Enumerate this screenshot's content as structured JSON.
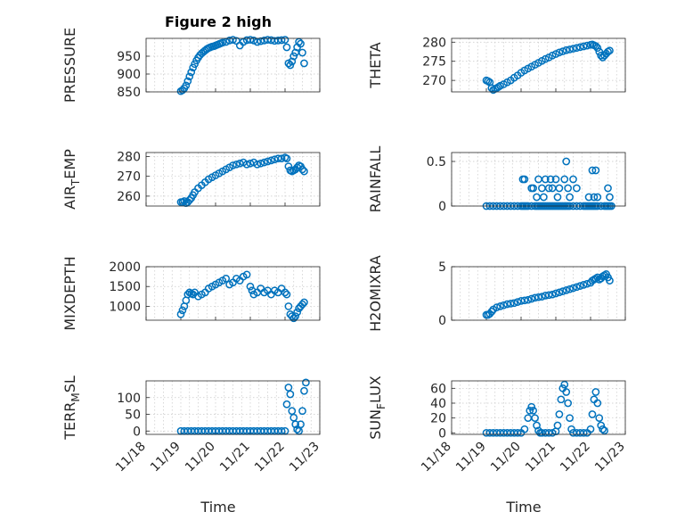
{
  "figure_title": "Figure 2 high",
  "marker_color": "#0072BD",
  "x_tick_labels": [
    "11/18",
    "11/19",
    "11/20",
    "11/21",
    "11/22",
    "11/23"
  ],
  "x_axis_label": "Time",
  "chart_data": [
    {
      "type": "scatter",
      "id": "pressure",
      "ylabel": "PRESSURE",
      "xlim": [
        18,
        23
      ],
      "ylim": [
        850,
        1000
      ],
      "yticks": [
        850,
        900,
        950
      ],
      "grid": true,
      "x": [
        19.0,
        19.05,
        19.1,
        19.15,
        19.2,
        19.25,
        19.3,
        19.35,
        19.4,
        19.45,
        19.5,
        19.55,
        19.6,
        19.65,
        19.7,
        19.75,
        19.8,
        19.85,
        19.9,
        19.95,
        20.0,
        20.05,
        20.1,
        20.15,
        20.2,
        20.3,
        20.4,
        20.5,
        20.6,
        20.7,
        20.8,
        20.9,
        21.0,
        21.1,
        21.2,
        21.3,
        21.4,
        21.5,
        21.6,
        21.7,
        21.8,
        21.9,
        22.0,
        22.05,
        22.1,
        22.15,
        22.2,
        22.25,
        22.3,
        22.35,
        22.4,
        22.45,
        22.5,
        22.55
      ],
      "y": [
        852,
        855,
        860,
        868,
        880,
        893,
        905,
        918,
        928,
        938,
        946,
        953,
        958,
        962,
        966,
        970,
        973,
        975,
        977,
        978,
        980,
        982,
        984,
        986,
        988,
        990,
        994,
        996,
        993,
        980,
        990,
        995,
        996,
        994,
        990,
        992,
        994,
        996,
        995,
        993,
        994,
        995,
        996,
        975,
        930,
        925,
        935,
        950,
        960,
        975,
        990,
        985,
        960,
        930
      ]
    },
    {
      "type": "scatter",
      "id": "theta",
      "ylabel": "THETA",
      "xlim": [
        18,
        23
      ],
      "ylim": [
        267,
        281
      ],
      "yticks": [
        270,
        275,
        280
      ],
      "grid": true,
      "x": [
        19.0,
        19.05,
        19.1,
        19.15,
        19.2,
        19.25,
        19.3,
        19.35,
        19.4,
        19.5,
        19.6,
        19.7,
        19.8,
        19.9,
        20.0,
        20.1,
        20.2,
        20.3,
        20.4,
        20.5,
        20.6,
        20.7,
        20.8,
        20.9,
        21.0,
        21.1,
        21.2,
        21.3,
        21.4,
        21.5,
        21.6,
        21.7,
        21.8,
        21.9,
        22.0,
        22.05,
        22.1,
        22.15,
        22.2,
        22.25,
        22.3,
        22.35,
        22.4,
        22.45,
        22.5,
        22.55
      ],
      "y": [
        270.0,
        269.8,
        269.5,
        268.0,
        267.5,
        267.8,
        268.0,
        268.3,
        268.6,
        269.0,
        269.5,
        270.0,
        270.7,
        271.3,
        272.0,
        272.6,
        273.1,
        273.6,
        274.1,
        274.6,
        275.1,
        275.6,
        276.0,
        276.5,
        276.9,
        277.3,
        277.6,
        277.9,
        278.1,
        278.3,
        278.5,
        278.7,
        278.9,
        279.1,
        279.3,
        279.4,
        279.2,
        279.0,
        278.5,
        277.5,
        276.5,
        276.0,
        276.5,
        277.0,
        277.5,
        277.8
      ]
    },
    {
      "type": "scatter",
      "id": "air_temp",
      "ylabel": "AIR_TEMP",
      "xlim": [
        18,
        23
      ],
      "ylim": [
        255,
        282
      ],
      "yticks": [
        260,
        270,
        280
      ],
      "grid": true,
      "x": [
        19.0,
        19.05,
        19.1,
        19.15,
        19.2,
        19.25,
        19.3,
        19.35,
        19.4,
        19.5,
        19.6,
        19.7,
        19.8,
        19.9,
        20.0,
        20.1,
        20.2,
        20.3,
        20.4,
        20.5,
        20.6,
        20.7,
        20.8,
        20.9,
        21.0,
        21.1,
        21.2,
        21.3,
        21.4,
        21.5,
        21.6,
        21.7,
        21.8,
        21.9,
        22.0,
        22.05,
        22.1,
        22.15,
        22.2,
        22.25,
        22.3,
        22.35,
        22.4,
        22.45,
        22.5,
        22.55
      ],
      "y": [
        257,
        257,
        257.5,
        256.5,
        257,
        258,
        259,
        260.5,
        262,
        264,
        265.5,
        267,
        268.5,
        269.5,
        270.5,
        271.5,
        272.5,
        273.5,
        274.5,
        275.5,
        276.0,
        276.5,
        277.0,
        276.0,
        276.5,
        277.0,
        276.0,
        276.5,
        277.0,
        277.5,
        278.0,
        278.5,
        279.0,
        279.0,
        279.5,
        279.0,
        275.0,
        273.0,
        272.5,
        273.0,
        273.5,
        274.5,
        275.5,
        275.0,
        273.5,
        272.5
      ]
    },
    {
      "type": "scatter",
      "id": "rainfall",
      "ylabel": "RAINFALL",
      "xlim": [
        18,
        23
      ],
      "ylim": [
        0,
        0.6
      ],
      "yticks": [
        0,
        0.5
      ],
      "grid": true,
      "x": [
        19.0,
        19.1,
        19.2,
        19.3,
        19.4,
        19.5,
        19.6,
        19.7,
        19.8,
        19.9,
        20.0,
        20.05,
        20.1,
        20.15,
        20.2,
        20.3,
        20.4,
        20.45,
        20.5,
        20.55,
        20.6,
        20.65,
        20.7,
        20.75,
        20.8,
        20.85,
        20.9,
        20.95,
        21.0,
        21.05,
        21.1,
        21.15,
        21.2,
        21.25,
        21.3,
        21.35,
        21.4,
        21.5,
        21.6,
        21.7,
        21.8,
        21.85,
        21.9,
        21.95,
        22.0,
        22.05,
        22.1,
        22.15,
        22.2,
        22.3,
        22.4,
        22.45,
        22.5,
        22.55,
        22.6,
        20.05,
        20.1,
        20.3,
        20.35,
        20.45,
        20.5,
        20.6,
        20.65,
        20.7,
        20.8,
        20.85,
        20.9,
        21.0,
        21.05,
        21.1,
        21.25,
        21.3,
        21.35,
        21.4,
        21.5,
        21.6,
        21.95,
        22.05,
        22.1,
        22.15,
        22.2,
        22.5,
        22.55
      ],
      "y": [
        0,
        0,
        0,
        0,
        0,
        0,
        0,
        0,
        0,
        0,
        0,
        0,
        0,
        0,
        0,
        0,
        0,
        0,
        0,
        0,
        0,
        0,
        0,
        0,
        0,
        0,
        0,
        0,
        0,
        0,
        0,
        0,
        0,
        0,
        0,
        0,
        0,
        0,
        0,
        0,
        0,
        0,
        0,
        0,
        0,
        0,
        0,
        0,
        0,
        0,
        0,
        0,
        0,
        0,
        0,
        0.3,
        0.3,
        0.2,
        0.2,
        0.1,
        0.3,
        0.2,
        0.1,
        0.3,
        0.2,
        0.3,
        0.2,
        0.3,
        0.1,
        0.2,
        0.3,
        0.5,
        0.2,
        0.1,
        0.3,
        0.2,
        0.1,
        0.4,
        0.1,
        0.4,
        0.1,
        0.2,
        0.1
      ]
    },
    {
      "type": "scatter",
      "id": "mixdepth",
      "ylabel": "MIXDEPTH",
      "xlim": [
        18,
        23
      ],
      "ylim": [
        650,
        2000
      ],
      "yticks": [
        1000,
        1500,
        2000
      ],
      "grid": true,
      "x": [
        19.0,
        19.05,
        19.1,
        19.15,
        19.2,
        19.25,
        19.3,
        19.35,
        19.4,
        19.5,
        19.6,
        19.7,
        19.8,
        19.9,
        20.0,
        20.1,
        20.2,
        20.3,
        20.4,
        20.5,
        20.6,
        20.7,
        20.8,
        20.9,
        21.0,
        21.05,
        21.1,
        21.2,
        21.3,
        21.4,
        21.5,
        21.6,
        21.7,
        21.8,
        21.9,
        22.0,
        22.05,
        22.1,
        22.15,
        22.2,
        22.25,
        22.3,
        22.35,
        22.4,
        22.45,
        22.5,
        22.55
      ],
      "y": [
        800,
        900,
        1000,
        1150,
        1300,
        1350,
        1320,
        1300,
        1350,
        1250,
        1300,
        1350,
        1450,
        1500,
        1550,
        1600,
        1650,
        1700,
        1550,
        1600,
        1700,
        1650,
        1750,
        1800,
        1500,
        1400,
        1300,
        1350,
        1450,
        1350,
        1400,
        1300,
        1400,
        1350,
        1450,
        1350,
        1300,
        1000,
        800,
        750,
        700,
        750,
        850,
        950,
        1000,
        1050,
        1100
      ]
    },
    {
      "type": "scatter",
      "id": "h2omixra",
      "ylabel": "H2OMIXRA",
      "xlim": [
        18,
        23
      ],
      "ylim": [
        0,
        5
      ],
      "yticks": [
        0,
        5
      ],
      "grid": true,
      "x": [
        19.0,
        19.05,
        19.1,
        19.15,
        19.2,
        19.3,
        19.4,
        19.5,
        19.6,
        19.7,
        19.8,
        19.9,
        20.0,
        20.1,
        20.2,
        20.3,
        20.4,
        20.5,
        20.6,
        20.7,
        20.8,
        20.9,
        21.0,
        21.1,
        21.2,
        21.3,
        21.4,
        21.5,
        21.6,
        21.7,
        21.8,
        21.9,
        22.0,
        22.05,
        22.1,
        22.15,
        22.2,
        22.25,
        22.3,
        22.35,
        22.4,
        22.45,
        22.5,
        22.55
      ],
      "y": [
        0.5,
        0.5,
        0.6,
        0.8,
        1.0,
        1.2,
        1.3,
        1.4,
        1.5,
        1.55,
        1.6,
        1.7,
        1.8,
        1.85,
        1.9,
        2.0,
        2.1,
        2.15,
        2.2,
        2.3,
        2.35,
        2.4,
        2.5,
        2.6,
        2.7,
        2.8,
        2.9,
        3.0,
        3.1,
        3.2,
        3.3,
        3.4,
        3.5,
        3.7,
        3.8,
        3.9,
        4.0,
        3.8,
        3.9,
        4.1,
        4.2,
        4.3,
        4.0,
        3.7
      ]
    },
    {
      "type": "scatter",
      "id": "terr_msl",
      "ylabel": "TERR_MSL",
      "xlim": [
        18,
        23
      ],
      "ylim": [
        -10,
        150
      ],
      "yticks": [
        0,
        50,
        100
      ],
      "grid": true,
      "x": [
        19.0,
        19.1,
        19.2,
        19.3,
        19.4,
        19.5,
        19.6,
        19.7,
        19.8,
        19.9,
        20.0,
        20.1,
        20.2,
        20.3,
        20.4,
        20.5,
        20.6,
        20.7,
        20.8,
        20.9,
        21.0,
        21.1,
        21.2,
        21.3,
        21.4,
        21.5,
        21.6,
        21.7,
        21.8,
        21.9,
        22.0,
        22.05,
        22.1,
        22.15,
        22.2,
        22.25,
        22.3,
        22.35,
        22.4,
        22.45,
        22.5,
        22.55,
        22.6
      ],
      "y": [
        0,
        0,
        0,
        0,
        0,
        0,
        0,
        0,
        0,
        0,
        0,
        0,
        0,
        0,
        0,
        0,
        0,
        0,
        0,
        0,
        0,
        0,
        0,
        0,
        0,
        0,
        0,
        0,
        0,
        0,
        0,
        80,
        130,
        110,
        60,
        40,
        20,
        5,
        0,
        20,
        60,
        120,
        145
      ]
    },
    {
      "type": "scatter",
      "id": "sun_flux",
      "ylabel": "SUN_FLUX",
      "xlim": [
        18,
        23
      ],
      "ylim": [
        -2,
        70
      ],
      "yticks": [
        0,
        20,
        40,
        60
      ],
      "grid": true,
      "x": [
        19.0,
        19.1,
        19.2,
        19.3,
        19.4,
        19.5,
        19.6,
        19.7,
        19.8,
        19.9,
        20.0,
        20.1,
        20.2,
        20.25,
        20.3,
        20.35,
        20.4,
        20.45,
        20.5,
        20.55,
        20.6,
        20.7,
        20.8,
        20.9,
        21.0,
        21.05,
        21.1,
        21.15,
        21.2,
        21.25,
        21.3,
        21.35,
        21.4,
        21.45,
        21.5,
        21.6,
        21.7,
        21.8,
        21.9,
        22.0,
        22.05,
        22.1,
        22.15,
        22.2,
        22.25,
        22.3,
        22.35,
        22.4
      ],
      "y": [
        0,
        0,
        0,
        0,
        0,
        0,
        0,
        0,
        0,
        0,
        0,
        5,
        20,
        30,
        35,
        30,
        20,
        10,
        3,
        0,
        0,
        0,
        0,
        0,
        2,
        10,
        25,
        45,
        60,
        65,
        55,
        40,
        20,
        5,
        0,
        0,
        0,
        0,
        0,
        5,
        25,
        45,
        55,
        40,
        20,
        10,
        5,
        3
      ]
    }
  ]
}
